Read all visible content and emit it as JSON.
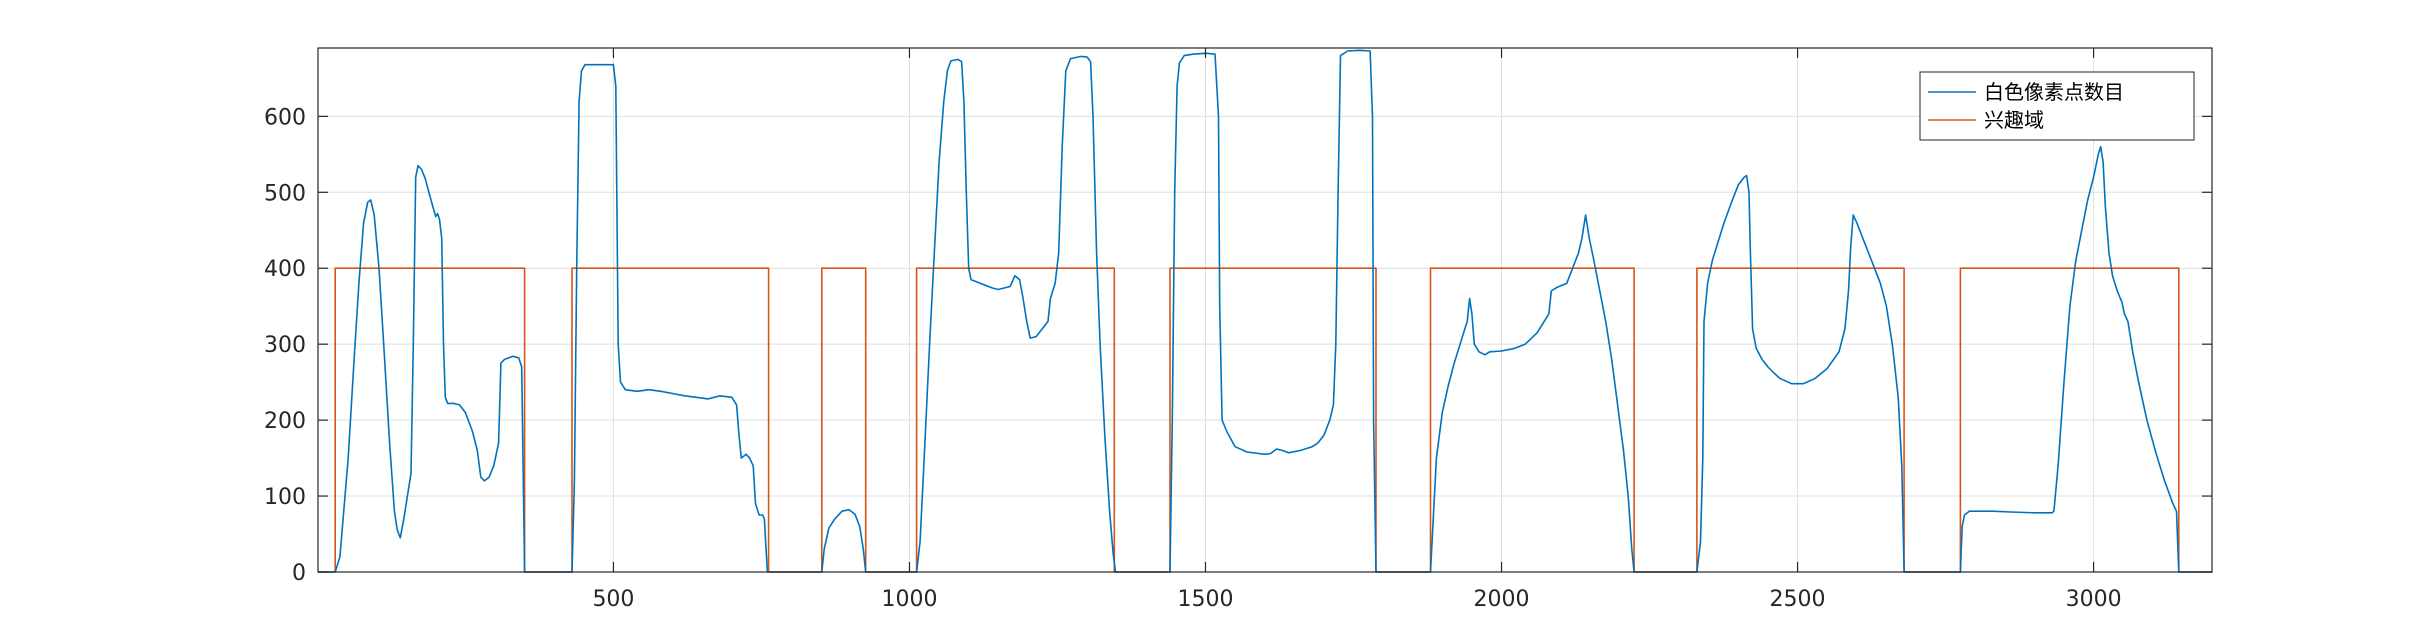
{
  "chart_data": {
    "type": "line",
    "title": "",
    "xlabel": "",
    "ylabel": "",
    "xlim": [
      1,
      3200
    ],
    "ylim": [
      0,
      690
    ],
    "x_ticks": [
      500,
      1000,
      1500,
      2000,
      2500,
      3000
    ],
    "y_ticks": [
      0,
      100,
      200,
      300,
      400,
      500,
      600
    ],
    "grid": true,
    "legend_position": "top-right",
    "series": [
      {
        "name": "白色像素点数目",
        "color": "#0072BD",
        "points": [
          [
            1,
            0
          ],
          [
            30,
            0
          ],
          [
            38,
            20
          ],
          [
            52,
            150
          ],
          [
            62,
            280
          ],
          [
            70,
            380
          ],
          [
            78,
            460
          ],
          [
            85,
            487
          ],
          [
            90,
            490
          ],
          [
            96,
            470
          ],
          [
            104,
            400
          ],
          [
            112,
            300
          ],
          [
            122,
            170
          ],
          [
            130,
            80
          ],
          [
            135,
            55
          ],
          [
            140,
            45
          ],
          [
            146,
            70
          ],
          [
            152,
            100
          ],
          [
            158,
            130
          ],
          [
            162,
            300
          ],
          [
            166,
            520
          ],
          [
            170,
            535
          ],
          [
            176,
            530
          ],
          [
            182,
            518
          ],
          [
            190,
            495
          ],
          [
            196,
            478
          ],
          [
            200,
            468
          ],
          [
            203,
            472
          ],
          [
            206,
            465
          ],
          [
            210,
            440
          ],
          [
            213,
            300
          ],
          [
            216,
            230
          ],
          [
            220,
            222
          ],
          [
            230,
            222
          ],
          [
            240,
            220
          ],
          [
            250,
            210
          ],
          [
            262,
            185
          ],
          [
            270,
            160
          ],
          [
            276,
            125
          ],
          [
            282,
            120
          ],
          [
            290,
            125
          ],
          [
            298,
            140
          ],
          [
            302,
            155
          ],
          [
            306,
            170
          ],
          [
            310,
            275
          ],
          [
            316,
            280
          ],
          [
            330,
            284
          ],
          [
            340,
            282
          ],
          [
            345,
            270
          ],
          [
            350,
            0
          ],
          [
            430,
            0
          ],
          [
            434,
            120
          ],
          [
            438,
            400
          ],
          [
            442,
            620
          ],
          [
            446,
            660
          ],
          [
            452,
            668
          ],
          [
            460,
            668
          ],
          [
            480,
            668
          ],
          [
            500,
            668
          ],
          [
            504,
            640
          ],
          [
            508,
            300
          ],
          [
            512,
            250
          ],
          [
            520,
            240
          ],
          [
            540,
            238
          ],
          [
            560,
            240
          ],
          [
            580,
            238
          ],
          [
            600,
            235
          ],
          [
            620,
            232
          ],
          [
            640,
            230
          ],
          [
            660,
            228
          ],
          [
            680,
            232
          ],
          [
            700,
            230
          ],
          [
            708,
            220
          ],
          [
            712,
            180
          ],
          [
            716,
            150
          ],
          [
            724,
            155
          ],
          [
            730,
            150
          ],
          [
            736,
            140
          ],
          [
            740,
            90
          ],
          [
            746,
            75
          ],
          [
            752,
            75
          ],
          [
            755,
            70
          ],
          [
            757,
            40
          ],
          [
            760,
            0
          ],
          [
            852,
            0
          ],
          [
            856,
            30
          ],
          [
            864,
            58
          ],
          [
            874,
            70
          ],
          [
            886,
            80
          ],
          [
            898,
            82
          ],
          [
            908,
            76
          ],
          [
            916,
            60
          ],
          [
            922,
            30
          ],
          [
            926,
            0
          ],
          [
            1012,
            0
          ],
          [
            1018,
            40
          ],
          [
            1026,
            170
          ],
          [
            1034,
            300
          ],
          [
            1042,
            420
          ],
          [
            1050,
            540
          ],
          [
            1058,
            620
          ],
          [
            1064,
            660
          ],
          [
            1070,
            673
          ],
          [
            1082,
            675
          ],
          [
            1088,
            672
          ],
          [
            1092,
            620
          ],
          [
            1096,
            500
          ],
          [
            1100,
            400
          ],
          [
            1104,
            385
          ],
          [
            1120,
            380
          ],
          [
            1140,
            374
          ],
          [
            1150,
            372
          ],
          [
            1160,
            374
          ],
          [
            1170,
            376
          ],
          [
            1178,
            390
          ],
          [
            1186,
            385
          ],
          [
            1192,
            360
          ],
          [
            1198,
            330
          ],
          [
            1204,
            308
          ],
          [
            1214,
            310
          ],
          [
            1224,
            320
          ],
          [
            1234,
            330
          ],
          [
            1238,
            360
          ],
          [
            1246,
            380
          ],
          [
            1252,
            420
          ],
          [
            1258,
            560
          ],
          [
            1264,
            660
          ],
          [
            1272,
            676
          ],
          [
            1290,
            679
          ],
          [
            1300,
            678
          ],
          [
            1306,
            672
          ],
          [
            1310,
            600
          ],
          [
            1316,
            420
          ],
          [
            1322,
            300
          ],
          [
            1330,
            180
          ],
          [
            1338,
            80
          ],
          [
            1344,
            25
          ],
          [
            1348,
            0
          ],
          [
            1440,
            0
          ],
          [
            1444,
            200
          ],
          [
            1448,
            500
          ],
          [
            1452,
            640
          ],
          [
            1456,
            670
          ],
          [
            1464,
            680
          ],
          [
            1480,
            682
          ],
          [
            1500,
            683
          ],
          [
            1516,
            682
          ],
          [
            1522,
            600
          ],
          [
            1524,
            350
          ],
          [
            1528,
            200
          ],
          [
            1536,
            185
          ],
          [
            1550,
            165
          ],
          [
            1570,
            158
          ],
          [
            1600,
            155
          ],
          [
            1610,
            156
          ],
          [
            1620,
            162
          ],
          [
            1630,
            160
          ],
          [
            1640,
            157
          ],
          [
            1660,
            160
          ],
          [
            1680,
            165
          ],
          [
            1690,
            170
          ],
          [
            1700,
            180
          ],
          [
            1710,
            200
          ],
          [
            1716,
            220
          ],
          [
            1720,
            300
          ],
          [
            1724,
            500
          ],
          [
            1728,
            680
          ],
          [
            1740,
            686
          ],
          [
            1760,
            687
          ],
          [
            1778,
            686
          ],
          [
            1782,
            600
          ],
          [
            1784,
            200
          ],
          [
            1788,
            0
          ],
          [
            1880,
            0
          ],
          [
            1890,
            150
          ],
          [
            1900,
            210
          ],
          [
            1910,
            245
          ],
          [
            1920,
            275
          ],
          [
            1930,
            300
          ],
          [
            1938,
            320
          ],
          [
            1942,
            330
          ],
          [
            1946,
            360
          ],
          [
            1950,
            340
          ],
          [
            1954,
            300
          ],
          [
            1962,
            290
          ],
          [
            1972,
            286
          ],
          [
            1980,
            290
          ],
          [
            2000,
            291
          ],
          [
            2020,
            294
          ],
          [
            2040,
            300
          ],
          [
            2060,
            315
          ],
          [
            2080,
            340
          ],
          [
            2084,
            370
          ],
          [
            2094,
            375
          ],
          [
            2110,
            380
          ],
          [
            2120,
            400
          ],
          [
            2130,
            420
          ],
          [
            2136,
            440
          ],
          [
            2142,
            470
          ],
          [
            2148,
            440
          ],
          [
            2156,
            410
          ],
          [
            2166,
            370
          ],
          [
            2176,
            330
          ],
          [
            2186,
            280
          ],
          [
            2196,
            220
          ],
          [
            2206,
            160
          ],
          [
            2214,
            100
          ],
          [
            2220,
            30
          ],
          [
            2224,
            0
          ],
          [
            2330,
            0
          ],
          [
            2336,
            40
          ],
          [
            2340,
            150
          ],
          [
            2342,
            330
          ],
          [
            2348,
            380
          ],
          [
            2356,
            410
          ],
          [
            2364,
            430
          ],
          [
            2376,
            460
          ],
          [
            2390,
            490
          ],
          [
            2400,
            510
          ],
          [
            2410,
            520
          ],
          [
            2414,
            522
          ],
          [
            2418,
            500
          ],
          [
            2420,
            430
          ],
          [
            2424,
            320
          ],
          [
            2430,
            295
          ],
          [
            2440,
            280
          ],
          [
            2450,
            270
          ],
          [
            2460,
            262
          ],
          [
            2470,
            255
          ],
          [
            2490,
            248
          ],
          [
            2510,
            248
          ],
          [
            2530,
            255
          ],
          [
            2550,
            268
          ],
          [
            2570,
            290
          ],
          [
            2580,
            320
          ],
          [
            2586,
            370
          ],
          [
            2590,
            430
          ],
          [
            2594,
            470
          ],
          [
            2600,
            460
          ],
          [
            2610,
            440
          ],
          [
            2620,
            420
          ],
          [
            2630,
            400
          ],
          [
            2640,
            380
          ],
          [
            2650,
            350
          ],
          [
            2660,
            300
          ],
          [
            2670,
            230
          ],
          [
            2676,
            140
          ],
          [
            2680,
            0
          ],
          [
            2775,
            0
          ],
          [
            2778,
            60
          ],
          [
            2782,
            75
          ],
          [
            2790,
            80
          ],
          [
            2830,
            80
          ],
          [
            2860,
            79
          ],
          [
            2900,
            78
          ],
          [
            2930,
            78
          ],
          [
            2933,
            80
          ],
          [
            2940,
            140
          ],
          [
            2950,
            250
          ],
          [
            2960,
            350
          ],
          [
            2970,
            410
          ],
          [
            2980,
            450
          ],
          [
            2990,
            490
          ],
          [
            3000,
            520
          ],
          [
            3008,
            550
          ],
          [
            3012,
            560
          ],
          [
            3016,
            540
          ],
          [
            3020,
            480
          ],
          [
            3026,
            420
          ],
          [
            3032,
            390
          ],
          [
            3040,
            370
          ],
          [
            3048,
            355
          ],
          [
            3052,
            340
          ],
          [
            3058,
            330
          ],
          [
            3066,
            290
          ],
          [
            3076,
            250
          ],
          [
            3090,
            200
          ],
          [
            3106,
            155
          ],
          [
            3120,
            120
          ],
          [
            3134,
            90
          ],
          [
            3140,
            80
          ],
          [
            3144,
            0
          ],
          [
            3200,
            0
          ]
        ]
      },
      {
        "name": "兴趣域",
        "color": "#D95319",
        "points": [
          [
            1,
            0
          ],
          [
            30,
            0
          ],
          [
            30,
            400
          ],
          [
            350,
            400
          ],
          [
            350,
            0
          ],
          [
            430,
            0
          ],
          [
            430,
            400
          ],
          [
            762,
            400
          ],
          [
            762,
            0
          ],
          [
            852,
            0
          ],
          [
            852,
            400
          ],
          [
            926,
            400
          ],
          [
            926,
            0
          ],
          [
            1012,
            0
          ],
          [
            1012,
            400
          ],
          [
            1346,
            400
          ],
          [
            1346,
            0
          ],
          [
            1440,
            0
          ],
          [
            1440,
            400
          ],
          [
            1788,
            400
          ],
          [
            1788,
            0
          ],
          [
            1880,
            0
          ],
          [
            1880,
            400
          ],
          [
            2224,
            400
          ],
          [
            2224,
            0
          ],
          [
            2330,
            0
          ],
          [
            2330,
            400
          ],
          [
            2680,
            400
          ],
          [
            2680,
            0
          ],
          [
            2775,
            0
          ],
          [
            2775,
            400
          ],
          [
            3144,
            400
          ],
          [
            3144,
            0
          ],
          [
            3200,
            0
          ]
        ]
      }
    ]
  }
}
